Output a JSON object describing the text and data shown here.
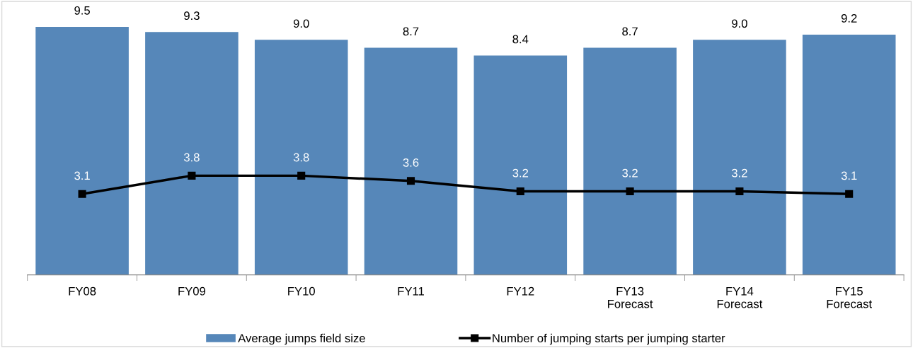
{
  "chart_data": {
    "type": "bar",
    "categories": [
      "FY08",
      "FY09",
      "FY10",
      "FY11",
      "FY12",
      "FY13\nForecast",
      "FY14\nForecast",
      "FY15\nForecast"
    ],
    "series": [
      {
        "name": "Average jumps field size",
        "color": "#5687b9",
        "values": [
          9.5,
          9.3,
          9.0,
          8.7,
          8.4,
          8.7,
          9.0,
          9.2
        ],
        "value_labels": [
          "9.5",
          "9.3",
          "9.0",
          "8.7",
          "8.4",
          "8.7",
          "9.0",
          "9.2"
        ]
      },
      {
        "name": "Number of jumping starts per jumping starter",
        "type": "line",
        "color": "#000000",
        "values": [
          3.1,
          3.8,
          3.8,
          3.6,
          3.2,
          3.2,
          3.2,
          3.1
        ],
        "value_labels": [
          "3.1",
          "3.8",
          "3.8",
          "3.6",
          "3.2",
          "3.2",
          "3.2",
          "3.1"
        ]
      }
    ],
    "legend": "bottom",
    "grid": false,
    "marker": "square",
    "line_style": "solid"
  }
}
